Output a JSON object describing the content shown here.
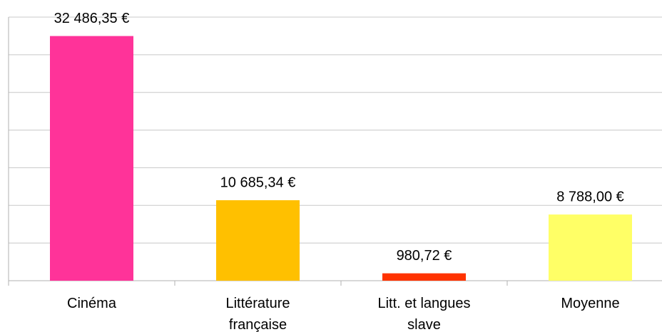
{
  "chart_data": {
    "type": "bar",
    "categories": [
      "Cinéma",
      "Littérature française",
      "Litt. et langues slave",
      "Moyenne"
    ],
    "values": [
      32486.35,
      10685.34,
      980.72,
      8788.0
    ],
    "value_labels": [
      "32 486,35 €",
      "10 685,34 €",
      "980,72 €",
      "8 788,00 €"
    ],
    "colors": [
      "#ff3399",
      "#ffc000",
      "#ff3300",
      "#ffff66"
    ],
    "ylim": [
      0,
      35000
    ],
    "yticks": [
      0,
      5000,
      10000,
      15000,
      20000,
      25000,
      30000,
      35000
    ],
    "grid": true
  }
}
